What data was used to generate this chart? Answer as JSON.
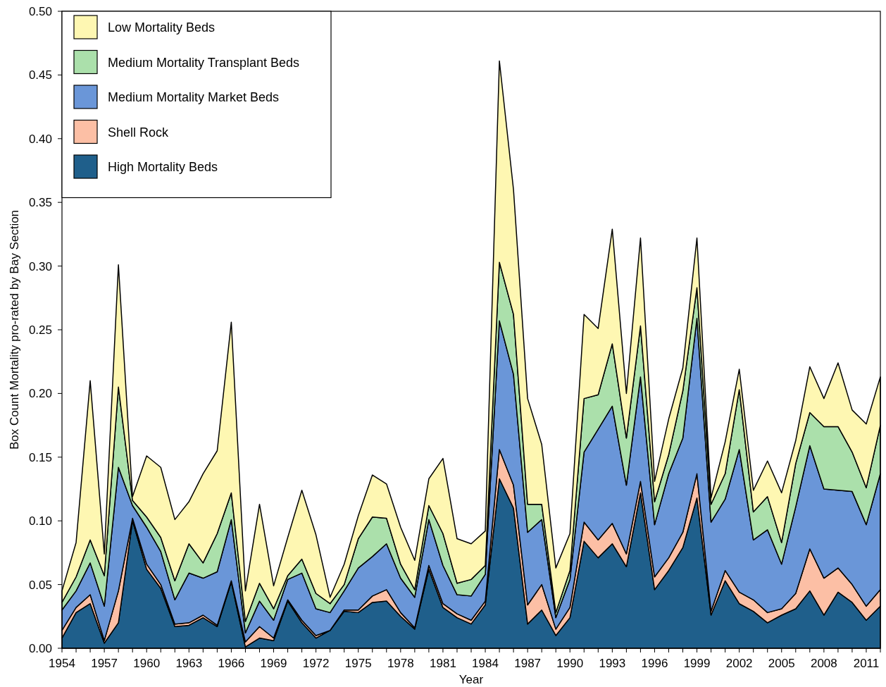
{
  "chart_data": {
    "type": "area",
    "stacked": true,
    "xlabel": "Year",
    "ylabel": "Box Count Mortality pro-rated by Bay Section",
    "legend": "top left",
    "grid": false,
    "x": [
      1954,
      1955,
      1956,
      1957,
      1958,
      1959,
      1960,
      1961,
      1962,
      1963,
      1964,
      1965,
      1966,
      1967,
      1968,
      1969,
      1970,
      1971,
      1972,
      1973,
      1974,
      1975,
      1976,
      1977,
      1978,
      1979,
      1980,
      1981,
      1982,
      1983,
      1984,
      1985,
      1986,
      1987,
      1988,
      1989,
      1990,
      1991,
      1992,
      1993,
      1994,
      1995,
      1996,
      1997,
      1998,
      1999,
      2000,
      2001,
      2002,
      2003,
      2004,
      2005,
      2006,
      2007,
      2008,
      2009,
      2010,
      2011,
      2012
    ],
    "xlim": [
      1954,
      2012
    ],
    "ylim": [
      0,
      0.5
    ],
    "xticks": [
      1954,
      {
        "value": 1955,
        "label": null
      },
      {
        "value": 1956,
        "label": null
      },
      1957,
      {
        "value": 1958,
        "label": null
      },
      {
        "value": 1959,
        "label": null
      },
      1960,
      {
        "value": 1961,
        "label": null
      },
      {
        "value": 1962,
        "label": null
      },
      1963,
      {
        "value": 1964,
        "label": null
      },
      {
        "value": 1965,
        "label": null
      },
      1966,
      {
        "value": 1967,
        "label": null
      },
      {
        "value": 1968,
        "label": null
      },
      1969,
      {
        "value": 1970,
        "label": null
      },
      {
        "value": 1971,
        "label": null
      },
      1972,
      {
        "value": 1973,
        "label": null
      },
      {
        "value": 1974,
        "label": null
      },
      1975,
      {
        "value": 1976,
        "label": null
      },
      {
        "value": 1977,
        "label": null
      },
      1978,
      {
        "value": 1979,
        "label": null
      },
      {
        "value": 1980,
        "label": null
      },
      1981,
      {
        "value": 1982,
        "label": null
      },
      {
        "value": 1983,
        "label": null
      },
      1984,
      {
        "value": 1985,
        "label": null
      },
      {
        "value": 1986,
        "label": null
      },
      1987,
      {
        "value": 1988,
        "label": null
      },
      {
        "value": 1989,
        "label": null
      },
      1990,
      {
        "value": 1991,
        "label": null
      },
      {
        "value": 1992,
        "label": null
      },
      1993,
      {
        "value": 1994,
        "label": null
      },
      {
        "value": 1995,
        "label": null
      },
      1996,
      {
        "value": 1997,
        "label": null
      },
      {
        "value": 1998,
        "label": null
      },
      1999,
      {
        "value": 2000,
        "label": null
      },
      {
        "value": 2001,
        "label": null
      },
      2002,
      {
        "value": 2003,
        "label": null
      },
      {
        "value": 2004,
        "label": null
      },
      2005,
      {
        "value": 2006,
        "label": null
      },
      {
        "value": 2007,
        "label": null
      },
      2008,
      {
        "value": 2009,
        "label": null
      },
      {
        "value": 2010,
        "label": null
      },
      2011,
      {
        "value": 2012,
        "label": null
      }
    ],
    "yticks": [
      {
        "value": 0,
        "label": "0.00"
      },
      {
        "value": 0.05,
        "label": "0.05"
      },
      {
        "value": 0.1,
        "label": "0.10"
      },
      {
        "value": 0.15,
        "label": "0.15"
      },
      {
        "value": 0.2,
        "label": "0.20"
      },
      {
        "value": 0.25,
        "label": "0.25"
      },
      {
        "value": 0.3,
        "label": "0.30"
      },
      {
        "value": 0.35,
        "label": "0.35"
      },
      {
        "value": 0.4,
        "label": "0.40"
      },
      {
        "value": 0.45,
        "label": "0.45"
      },
      {
        "value": 0.5,
        "label": "0.50"
      }
    ],
    "series": [
      {
        "name": "High Mortality Beds",
        "color": "#1f5f8b",
        "values": [
          0.008,
          0.028,
          0.035,
          0.004,
          0.02,
          0.1,
          0.062,
          0.047,
          0.017,
          0.018,
          0.024,
          0.017,
          0.052,
          0.001,
          0.008,
          0.006,
          0.037,
          0.02,
          0.008,
          0.014,
          0.029,
          0.028,
          0.036,
          0.037,
          0.025,
          0.015,
          0.062,
          0.032,
          0.024,
          0.019,
          0.034,
          0.133,
          0.11,
          0.019,
          0.03,
          0.01,
          0.024,
          0.084,
          0.071,
          0.082,
          0.064,
          0.122,
          0.046,
          0.061,
          0.079,
          0.118,
          0.026,
          0.053,
          0.035,
          0.029,
          0.02,
          0.026,
          0.031,
          0.045,
          0.026,
          0.044,
          0.036,
          0.022,
          0.033
        ]
      },
      {
        "name": "Shell Rock",
        "color": "#fcbfa5",
        "values": [
          0.006,
          0.004,
          0.007,
          0.002,
          0.025,
          0.002,
          0.004,
          0.003,
          0.002,
          0.002,
          0.002,
          0.001,
          0.001,
          0.004,
          0.009,
          0.002,
          0.001,
          0.002,
          0.002,
          0,
          0.001,
          0.002,
          0.005,
          0.009,
          0.003,
          0.001,
          0.003,
          0.003,
          0.003,
          0.003,
          0.003,
          0.023,
          0.018,
          0.015,
          0.02,
          0.005,
          0.008,
          0.015,
          0.014,
          0.016,
          0.01,
          0.009,
          0.01,
          0.01,
          0.012,
          0.019,
          0.003,
          0.008,
          0.009,
          0.009,
          0.008,
          0.005,
          0.012,
          0.033,
          0.029,
          0.019,
          0.014,
          0.011,
          0.013
        ]
      },
      {
        "name": "Medium Mortality Market Beds",
        "color": "#6a96d8",
        "values": [
          0.016,
          0.013,
          0.025,
          0.027,
          0.097,
          0.01,
          0.029,
          0.026,
          0.019,
          0.039,
          0.029,
          0.042,
          0.048,
          0.007,
          0.02,
          0.014,
          0.016,
          0.037,
          0.021,
          0.014,
          0.015,
          0.033,
          0.031,
          0.036,
          0.027,
          0.024,
          0.036,
          0.03,
          0.015,
          0.019,
          0.021,
          0.101,
          0.087,
          0.057,
          0.051,
          0.009,
          0.022,
          0.055,
          0.087,
          0.092,
          0.054,
          0.082,
          0.041,
          0.066,
          0.074,
          0.122,
          0.07,
          0.056,
          0.112,
          0.047,
          0.065,
          0.035,
          0.068,
          0.081,
          0.07,
          0.061,
          0.073,
          0.064,
          0.091
        ]
      },
      {
        "name": "Medium Mortality Transplant Beds",
        "color": "#abe0ab",
        "values": [
          0.006,
          0.011,
          0.018,
          0.024,
          0.063,
          0.004,
          0.008,
          0.011,
          0.015,
          0.023,
          0.012,
          0.03,
          0.021,
          0.009,
          0.014,
          0.009,
          0.003,
          0.011,
          0.012,
          0.007,
          0.005,
          0.023,
          0.031,
          0.02,
          0.011,
          0.006,
          0.011,
          0.025,
          0.009,
          0.013,
          0.007,
          0.046,
          0.047,
          0.022,
          0.012,
          0.004,
          0.007,
          0.042,
          0.027,
          0.049,
          0.037,
          0.04,
          0.018,
          0.015,
          0.037,
          0.024,
          0.014,
          0.02,
          0.047,
          0.022,
          0.026,
          0.017,
          0.034,
          0.026,
          0.049,
          0.05,
          0.031,
          0.029,
          0.038
        ]
      },
      {
        "name": "Low Mortality Beds",
        "color": "#fef7b2",
        "values": [
          0.009,
          0.027,
          0.125,
          0.017,
          0.096,
          0.003,
          0.048,
          0.055,
          0.048,
          0.033,
          0.07,
          0.065,
          0.134,
          0.024,
          0.062,
          0.018,
          0.03,
          0.054,
          0.046,
          0.005,
          0.016,
          0.018,
          0.033,
          0.027,
          0.029,
          0.023,
          0.021,
          0.059,
          0.035,
          0.028,
          0.027,
          0.158,
          0.098,
          0.083,
          0.047,
          0.035,
          0.029,
          0.066,
          0.052,
          0.09,
          0.035,
          0.069,
          0.016,
          0.028,
          0.018,
          0.039,
          0.005,
          0.025,
          0.016,
          0.017,
          0.028,
          0.039,
          0.018,
          0.036,
          0.022,
          0.05,
          0.033,
          0.05,
          0.038
        ]
      }
    ]
  }
}
